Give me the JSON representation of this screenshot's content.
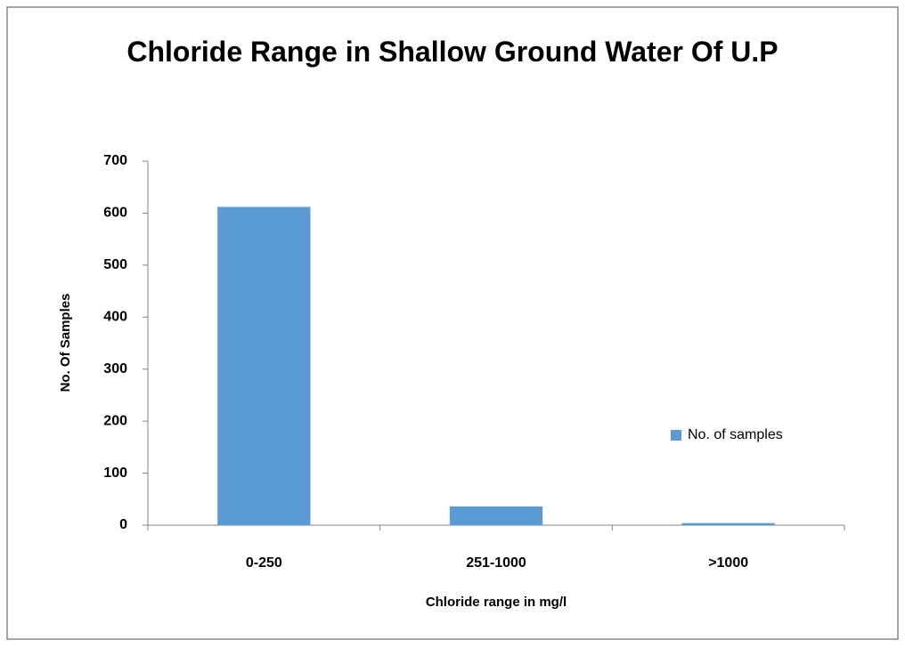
{
  "chart_data": {
    "type": "bar",
    "title": "Chloride Range in Shallow Ground Water Of U.P",
    "xlabel": "Chloride range in mg/l",
    "ylabel": "No. Of Samples",
    "categories": [
      "0-250",
      "251-1000",
      ">1000"
    ],
    "series": [
      {
        "name": "No. of samples",
        "color": "#5b9bd5",
        "values": [
          612,
          36,
          4
        ]
      }
    ],
    "ylim": [
      0,
      700
    ],
    "yticks": [
      0,
      100,
      200,
      300,
      400,
      500,
      600,
      700
    ],
    "grid": false,
    "legend": "right"
  }
}
